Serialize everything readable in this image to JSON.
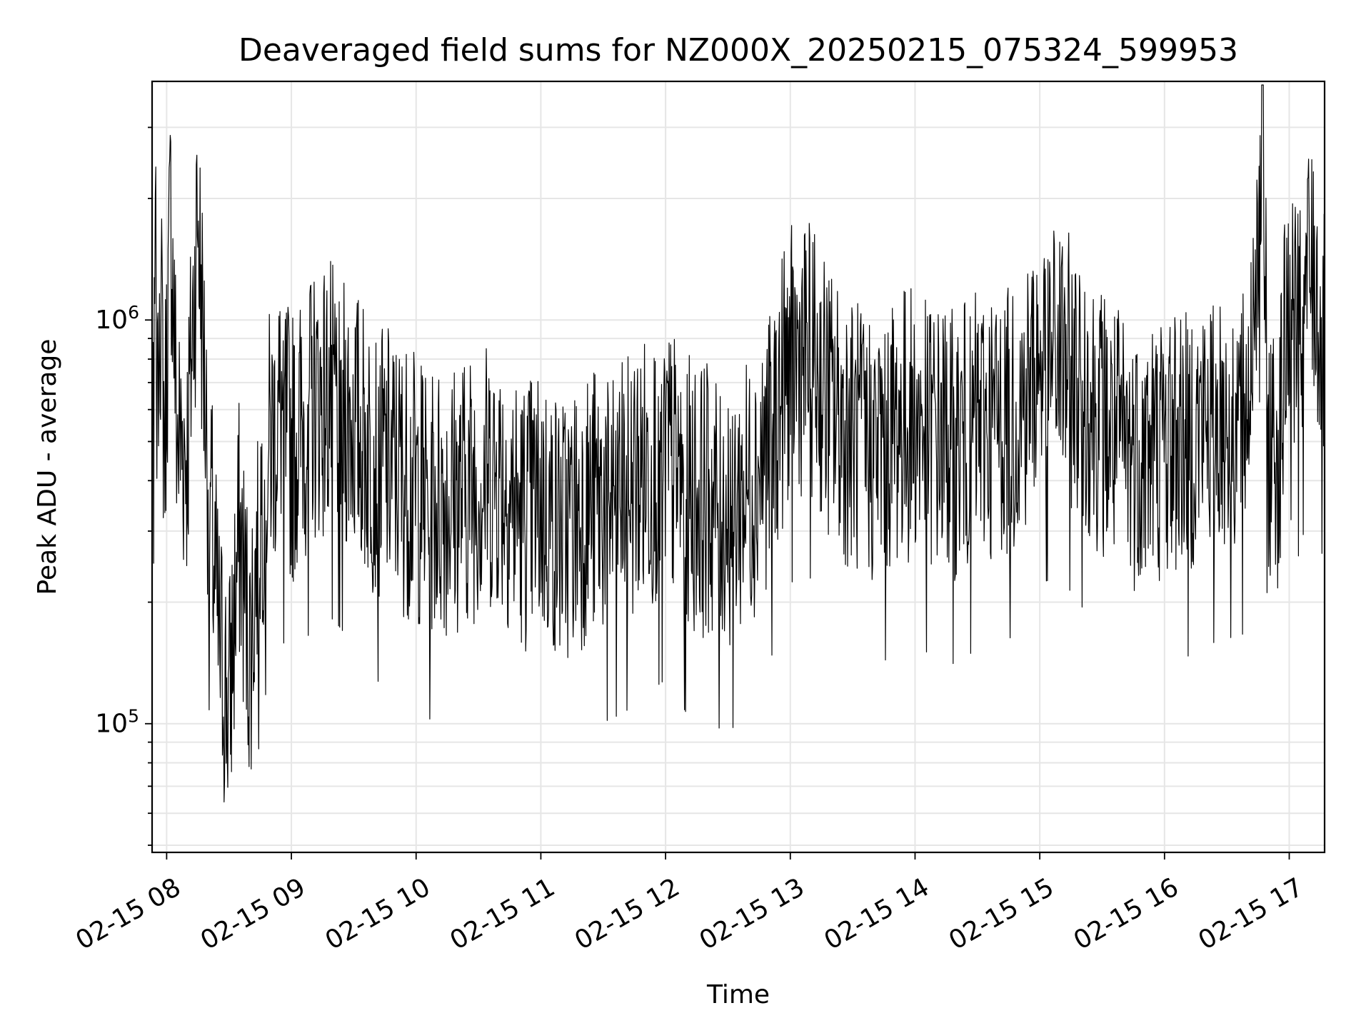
{
  "chart_data": {
    "type": "line",
    "title": "Deaveraged field sums for NZ000X_20250215_075324_599953",
    "xlabel": "Time",
    "ylabel": "Peak ADU - average",
    "x_ticks": [
      "02-15 08",
      "02-15 09",
      "02-15 10",
      "02-15 11",
      "02-15 12",
      "02-15 13",
      "02-15 14",
      "02-15 15",
      "02-15 16",
      "02-15 17"
    ],
    "y_ticks": [
      {
        "base": "10",
        "exp": "5",
        "value": 100000
      },
      {
        "base": "10",
        "exp": "6",
        "value": 1000000
      }
    ],
    "y_scale": "log",
    "x_range": [
      "2025-02-15 07:53",
      "2025-02-15 17:17"
    ],
    "ylim": [
      48000,
      3900000
    ],
    "grid": true,
    "line_color": "#000000",
    "grid_color": "#e6e6e6",
    "series": [
      {
        "x": [
          "2025-02-15 07:53",
          "2025-02-15 07:56",
          "2025-02-15 07:59",
          "2025-02-15 08:02",
          "2025-02-15 08:05",
          "2025-02-15 08:10",
          "2025-02-15 08:15",
          "2025-02-15 08:20",
          "2025-02-15 08:25",
          "2025-02-15 08:30",
          "2025-02-15 08:35",
          "2025-02-15 08:40",
          "2025-02-15 08:45",
          "2025-02-15 08:50",
          "2025-02-15 08:55",
          "2025-02-15 09:00",
          "2025-02-15 09:10",
          "2025-02-15 09:20",
          "2025-02-15 09:30",
          "2025-02-15 09:40",
          "2025-02-15 09:50",
          "2025-02-15 10:00",
          "2025-02-15 10:10",
          "2025-02-15 10:20",
          "2025-02-15 10:30",
          "2025-02-15 10:40",
          "2025-02-15 10:50",
          "2025-02-15 11:00",
          "2025-02-15 11:10",
          "2025-02-15 11:20",
          "2025-02-15 11:30",
          "2025-02-15 11:40",
          "2025-02-15 11:50",
          "2025-02-15 12:00",
          "2025-02-15 12:10",
          "2025-02-15 12:20",
          "2025-02-15 12:30",
          "2025-02-15 12:40",
          "2025-02-15 12:50",
          "2025-02-15 13:00",
          "2025-02-15 13:10",
          "2025-02-15 13:20",
          "2025-02-15 13:30",
          "2025-02-15 13:40",
          "2025-02-15 13:50",
          "2025-02-15 14:00",
          "2025-02-15 14:10",
          "2025-02-15 14:20",
          "2025-02-15 14:30",
          "2025-02-15 14:40",
          "2025-02-15 14:50",
          "2025-02-15 15:00",
          "2025-02-15 15:10",
          "2025-02-15 15:20",
          "2025-02-15 15:30",
          "2025-02-15 15:40",
          "2025-02-15 15:50",
          "2025-02-15 16:00",
          "2025-02-15 16:10",
          "2025-02-15 16:20",
          "2025-02-15 16:30",
          "2025-02-15 16:40",
          "2025-02-15 16:47",
          "2025-02-15 16:50",
          "2025-02-15 16:55",
          "2025-02-15 17:00",
          "2025-02-15 17:05",
          "2025-02-15 17:10",
          "2025-02-15 17:15",
          "2025-02-15 17:17"
        ],
        "y": [
          700000,
          1800000,
          500000,
          1900000,
          520000,
          480000,
          1900000,
          420000,
          160000,
          110000,
          300000,
          150000,
          350000,
          500000,
          600000,
          480000,
          620000,
          650000,
          560000,
          460000,
          430000,
          380000,
          360000,
          370000,
          400000,
          420000,
          330000,
          350000,
          300000,
          340000,
          360000,
          380000,
          420000,
          460000,
          380000,
          360000,
          340000,
          380000,
          500000,
          800000,
          820000,
          600000,
          520000,
          480000,
          540000,
          560000,
          520000,
          500000,
          550000,
          560000,
          600000,
          800000,
          820000,
          700000,
          560000,
          480000,
          470000,
          500000,
          520000,
          560000,
          580000,
          600000,
          3000000,
          500000,
          480000,
          1200000,
          900000,
          1400000,
          1000000,
          850000
        ]
      }
    ]
  }
}
